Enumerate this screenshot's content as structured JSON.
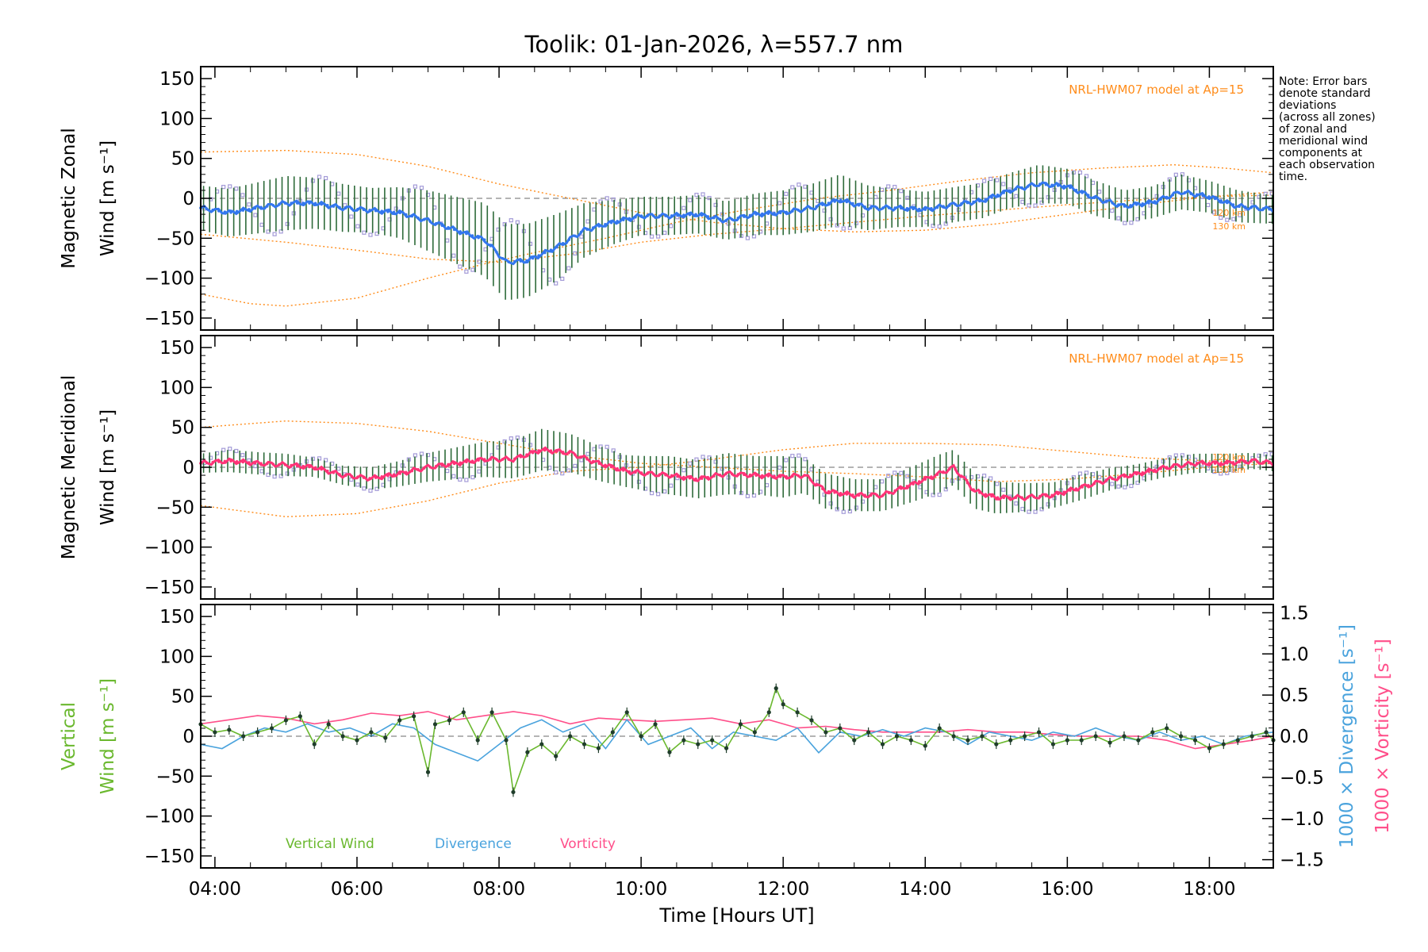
{
  "title": "Toolik: 01-Jan-2026, λ=557.7 nm",
  "note": {
    "lines": [
      "Note: Error bars",
      "denote standard",
      "deviations",
      "(across all zones)",
      "of zonal and",
      "meridional wind",
      "components at",
      "each observation",
      "time."
    ]
  },
  "colors": {
    "zonal": "#3377ee",
    "meridional": "#ff3377",
    "model": "#ff8c1a",
    "errorbar": "#2e6b3a",
    "zone_points": "#a49bd8",
    "vertical": "#6ab82e",
    "divergence": "#4aa3dd",
    "vorticity": "#ff4f8a"
  },
  "chart_data": [
    {
      "type": "line",
      "panel": "zonal",
      "ylabel_line1": "Magnetic Zonal",
      "ylabel_line2": "Wind [m s⁻¹]",
      "model_label": "NRL-HWM07 model at Ap=15",
      "model_alt_labels": [
        "120 km",
        "130 km"
      ],
      "xlim": [
        3.8,
        18.9
      ],
      "ylim": [
        -165,
        165
      ],
      "yticks": [
        -150,
        -100,
        -50,
        0,
        50,
        100,
        150
      ],
      "series": [
        {
          "name": "Zonal wind",
          "x": [
            3.8,
            4.2,
            4.6,
            5.0,
            5.4,
            5.8,
            6.2,
            6.6,
            7.0,
            7.4,
            7.8,
            8.1,
            8.4,
            8.8,
            9.2,
            9.6,
            10.0,
            10.4,
            10.8,
            11.2,
            11.6,
            12.0,
            12.4,
            12.8,
            13.2,
            13.6,
            14.0,
            14.4,
            14.8,
            15.2,
            15.6,
            16.0,
            16.4,
            16.8,
            17.2,
            17.6,
            18.0,
            18.4,
            18.9
          ],
          "y": [
            -12,
            -18,
            -12,
            -6,
            -6,
            -12,
            -15,
            -18,
            -28,
            -40,
            -52,
            -80,
            -78,
            -62,
            -40,
            -30,
            -22,
            -22,
            -20,
            -28,
            -20,
            -18,
            -12,
            -2,
            -12,
            -12,
            -14,
            -8,
            -3,
            10,
            18,
            15,
            0,
            -10,
            -5,
            8,
            2,
            -10,
            -14
          ],
          "err": [
            28,
            30,
            32,
            34,
            32,
            30,
            28,
            32,
            38,
            42,
            46,
            48,
            46,
            42,
            34,
            28,
            24,
            24,
            24,
            24,
            26,
            28,
            30,
            32,
            28,
            24,
            22,
            22,
            22,
            22,
            24,
            22,
            22,
            20,
            20,
            22,
            20,
            20,
            18
          ]
        },
        {
          "name": "HWM07 120 km",
          "x": [
            3.8,
            5.0,
            6.0,
            7.0,
            8.0,
            9.0,
            10.0,
            11.0,
            12.0,
            13.0,
            14.0,
            15.0,
            16.0,
            17.0,
            18.0,
            18.9
          ],
          "y": [
            58,
            60,
            55,
            40,
            18,
            0,
            -18,
            -30,
            -38,
            -42,
            -40,
            -32,
            -20,
            -8,
            2,
            8
          ]
        },
        {
          "name": "HWM07 130 km",
          "x": [
            3.8,
            4.5,
            5.0,
            6.0,
            7.0,
            7.8,
            8.5,
            9.5,
            10.5,
            11.5,
            12.5,
            13.5,
            14.5,
            15.5,
            16.5,
            17.5,
            18.2,
            18.9
          ],
          "y": [
            -120,
            -132,
            -135,
            -125,
            -100,
            -82,
            -68,
            -50,
            -30,
            -14,
            0,
            10,
            22,
            32,
            38,
            42,
            38,
            32
          ]
        },
        {
          "name": "HWM07 lower",
          "x": [
            3.8,
            5.0,
            6.0,
            7.0,
            8.0,
            9.0,
            10.0,
            11.0,
            12.0,
            13.0,
            14.0,
            15.0,
            16.0,
            17.0,
            18.0,
            18.9
          ],
          "y": [
            -45,
            -55,
            -65,
            -76,
            -80,
            -70,
            -55,
            -45,
            -38,
            -30,
            -22,
            -15,
            -8,
            -2,
            2,
            4
          ]
        }
      ]
    },
    {
      "type": "line",
      "panel": "meridional",
      "ylabel_line1": "Magnetic Meridional",
      "ylabel_line2": "Wind [m s⁻¹]",
      "model_label": "NRL-HWM07 model at Ap=15",
      "model_alt_labels": [
        "120 km",
        "130 km"
      ],
      "xlim": [
        3.8,
        18.9
      ],
      "ylim": [
        -165,
        165
      ],
      "yticks": [
        -150,
        -100,
        -50,
        0,
        50,
        100,
        150
      ],
      "series": [
        {
          "name": "Meridional wind",
          "x": [
            3.8,
            4.2,
            4.6,
            5.0,
            5.4,
            5.8,
            6.2,
            6.6,
            7.0,
            7.4,
            7.8,
            8.2,
            8.6,
            9.0,
            9.4,
            9.8,
            10.1,
            10.4,
            10.8,
            11.2,
            11.6,
            12.0,
            12.3,
            12.6,
            13.0,
            13.4,
            13.8,
            14.2,
            14.4,
            14.7,
            15.0,
            15.4,
            15.8,
            16.2,
            16.6,
            17.0,
            17.4,
            17.8,
            18.2,
            18.6,
            18.9
          ],
          "y": [
            5,
            8,
            5,
            3,
            0,
            -10,
            -14,
            -8,
            0,
            5,
            10,
            10,
            22,
            18,
            5,
            -5,
            -8,
            -10,
            -15,
            -8,
            -10,
            -12,
            -10,
            -30,
            -35,
            -35,
            -22,
            -8,
            0,
            -30,
            -38,
            -38,
            -35,
            -25,
            -15,
            -8,
            0,
            5,
            5,
            8,
            5
          ],
          "err": [
            12,
            14,
            14,
            14,
            12,
            12,
            14,
            16,
            18,
            20,
            22,
            24,
            26,
            24,
            22,
            20,
            22,
            24,
            24,
            26,
            24,
            26,
            22,
            22,
            20,
            20,
            22,
            24,
            22,
            22,
            20,
            18,
            16,
            16,
            14,
            12,
            12,
            12,
            12,
            10,
            10
          ]
        },
        {
          "name": "HWM07 120 km",
          "x": [
            3.8,
            5.0,
            6.0,
            7.0,
            8.0,
            9.0,
            10.0,
            11.0,
            12.0,
            13.0,
            14.0,
            15.0,
            16.0,
            17.0,
            18.0,
            18.9
          ],
          "y": [
            50,
            58,
            55,
            45,
            30,
            15,
            5,
            0,
            -5,
            -8,
            -12,
            -18,
            -15,
            -8,
            0,
            5
          ]
        },
        {
          "name": "HWM07 130 km",
          "x": [
            3.8,
            5.0,
            6.0,
            7.0,
            8.0,
            9.0,
            10.0,
            11.0,
            12.0,
            13.0,
            14.0,
            15.0,
            16.0,
            17.0,
            18.0,
            18.9
          ],
          "y": [
            -48,
            -62,
            -58,
            -42,
            -20,
            -5,
            0,
            10,
            22,
            30,
            30,
            28,
            20,
            12,
            8,
            5
          ]
        }
      ]
    },
    {
      "type": "line",
      "panel": "vertical",
      "ylabel_line1": "Vertical",
      "ylabel_line2": "Wind [m s⁻¹]",
      "y2label_div": "1000 × Divergence [s⁻¹]",
      "y2label_vor": "1000 × Vorticity [s⁻¹]",
      "xlabel": "Time [Hours UT]",
      "xticks": [
        "04:00",
        "06:00",
        "08:00",
        "10:00",
        "12:00",
        "14:00",
        "16:00",
        "18:00"
      ],
      "xlim": [
        3.8,
        18.9
      ],
      "ylim": [
        -165,
        165
      ],
      "yticks": [
        -150,
        -100,
        -50,
        0,
        50,
        100,
        150
      ],
      "y2lim": [
        -1.6,
        1.6
      ],
      "y2ticks": [
        -1.5,
        -1.0,
        -0.5,
        0.0,
        0.5,
        1.0,
        1.5
      ],
      "legend": [
        "Vertical Wind",
        "Divergence",
        "Vorticity"
      ],
      "series": [
        {
          "name": "Vertical Wind",
          "x": [
            3.8,
            4.0,
            4.2,
            4.4,
            4.6,
            4.8,
            5.0,
            5.2,
            5.4,
            5.6,
            5.8,
            6.0,
            6.2,
            6.4,
            6.6,
            6.8,
            7.0,
            7.1,
            7.3,
            7.5,
            7.7,
            7.9,
            8.1,
            8.2,
            8.4,
            8.6,
            8.8,
            9.0,
            9.2,
            9.4,
            9.6,
            9.8,
            10.0,
            10.2,
            10.4,
            10.6,
            10.8,
            11.0,
            11.2,
            11.4,
            11.6,
            11.8,
            11.9,
            12.0,
            12.2,
            12.4,
            12.6,
            12.8,
            13.0,
            13.2,
            13.4,
            13.6,
            13.8,
            14.0,
            14.2,
            14.4,
            14.6,
            14.8,
            15.0,
            15.2,
            15.4,
            15.6,
            15.8,
            16.0,
            16.2,
            16.4,
            16.6,
            16.8,
            17.0,
            17.2,
            17.4,
            17.6,
            17.8,
            18.0,
            18.2,
            18.4,
            18.6,
            18.8,
            18.9
          ],
          "y": [
            15,
            5,
            8,
            0,
            5,
            10,
            20,
            25,
            -10,
            15,
            0,
            -5,
            5,
            -2,
            20,
            25,
            -45,
            15,
            20,
            30,
            -5,
            30,
            -5,
            -70,
            -20,
            -10,
            -25,
            0,
            -10,
            -15,
            5,
            30,
            0,
            15,
            -20,
            -5,
            -10,
            -5,
            -15,
            15,
            5,
            30,
            60,
            40,
            30,
            20,
            5,
            10,
            -5,
            5,
            -10,
            0,
            -5,
            -12,
            10,
            0,
            -5,
            0,
            -10,
            -5,
            0,
            5,
            -10,
            -5,
            -5,
            0,
            -8,
            0,
            -5,
            5,
            10,
            0,
            -5,
            -15,
            -10,
            -5,
            0,
            5,
            -5
          ]
        },
        {
          "name": "Divergence",
          "x": [
            3.8,
            4.1,
            4.4,
            4.7,
            5.0,
            5.3,
            5.6,
            5.9,
            6.2,
            6.5,
            6.8,
            7.1,
            7.4,
            7.7,
            8.0,
            8.3,
            8.6,
            8.9,
            9.2,
            9.5,
            9.8,
            10.1,
            10.4,
            10.7,
            11.0,
            11.3,
            11.6,
            11.9,
            12.2,
            12.5,
            12.8,
            13.1,
            13.4,
            13.7,
            14.0,
            14.3,
            14.6,
            14.9,
            15.2,
            15.5,
            15.8,
            16.1,
            16.4,
            16.7,
            17.0,
            17.3,
            17.6,
            17.9,
            18.2,
            18.5,
            18.9
          ],
          "y": [
            -0.1,
            -0.15,
            0.0,
            0.1,
            0.05,
            0.15,
            0.05,
            0.1,
            0.0,
            0.15,
            0.1,
            -0.1,
            -0.2,
            -0.3,
            -0.1,
            0.1,
            0.2,
            0.05,
            0.15,
            -0.15,
            0.2,
            -0.1,
            0.0,
            0.1,
            -0.15,
            0.05,
            0.0,
            -0.05,
            0.1,
            -0.2,
            0.05,
            0.0,
            0.08,
            0.0,
            0.1,
            0.05,
            -0.1,
            0.05,
            0.0,
            -0.05,
            0.05,
            0.0,
            0.1,
            0.0,
            -0.05,
            0.05,
            -0.05,
            0.0,
            -0.1,
            0.0,
            0.05
          ]
        },
        {
          "name": "Vorticity",
          "x": [
            3.8,
            4.2,
            4.6,
            5.0,
            5.4,
            5.8,
            6.2,
            6.6,
            7.0,
            7.4,
            7.8,
            8.2,
            8.6,
            9.0,
            9.4,
            9.8,
            10.2,
            10.6,
            11.0,
            11.4,
            11.8,
            12.2,
            12.6,
            13.0,
            13.4,
            13.8,
            14.2,
            14.6,
            15.0,
            15.4,
            15.8,
            16.2,
            16.6,
            17.0,
            17.4,
            17.8,
            18.2,
            18.6,
            18.9
          ],
          "y": [
            0.15,
            0.2,
            0.25,
            0.22,
            0.15,
            0.2,
            0.28,
            0.25,
            0.3,
            0.2,
            0.25,
            0.3,
            0.25,
            0.15,
            0.22,
            0.2,
            0.18,
            0.2,
            0.22,
            0.15,
            0.2,
            0.1,
            0.12,
            0.08,
            0.05,
            0.05,
            0.05,
            0.08,
            0.05,
            0.05,
            0.02,
            0.0,
            0.0,
            0.0,
            -0.05,
            -0.15,
            -0.1,
            -0.05,
            0.0
          ]
        }
      ]
    }
  ]
}
